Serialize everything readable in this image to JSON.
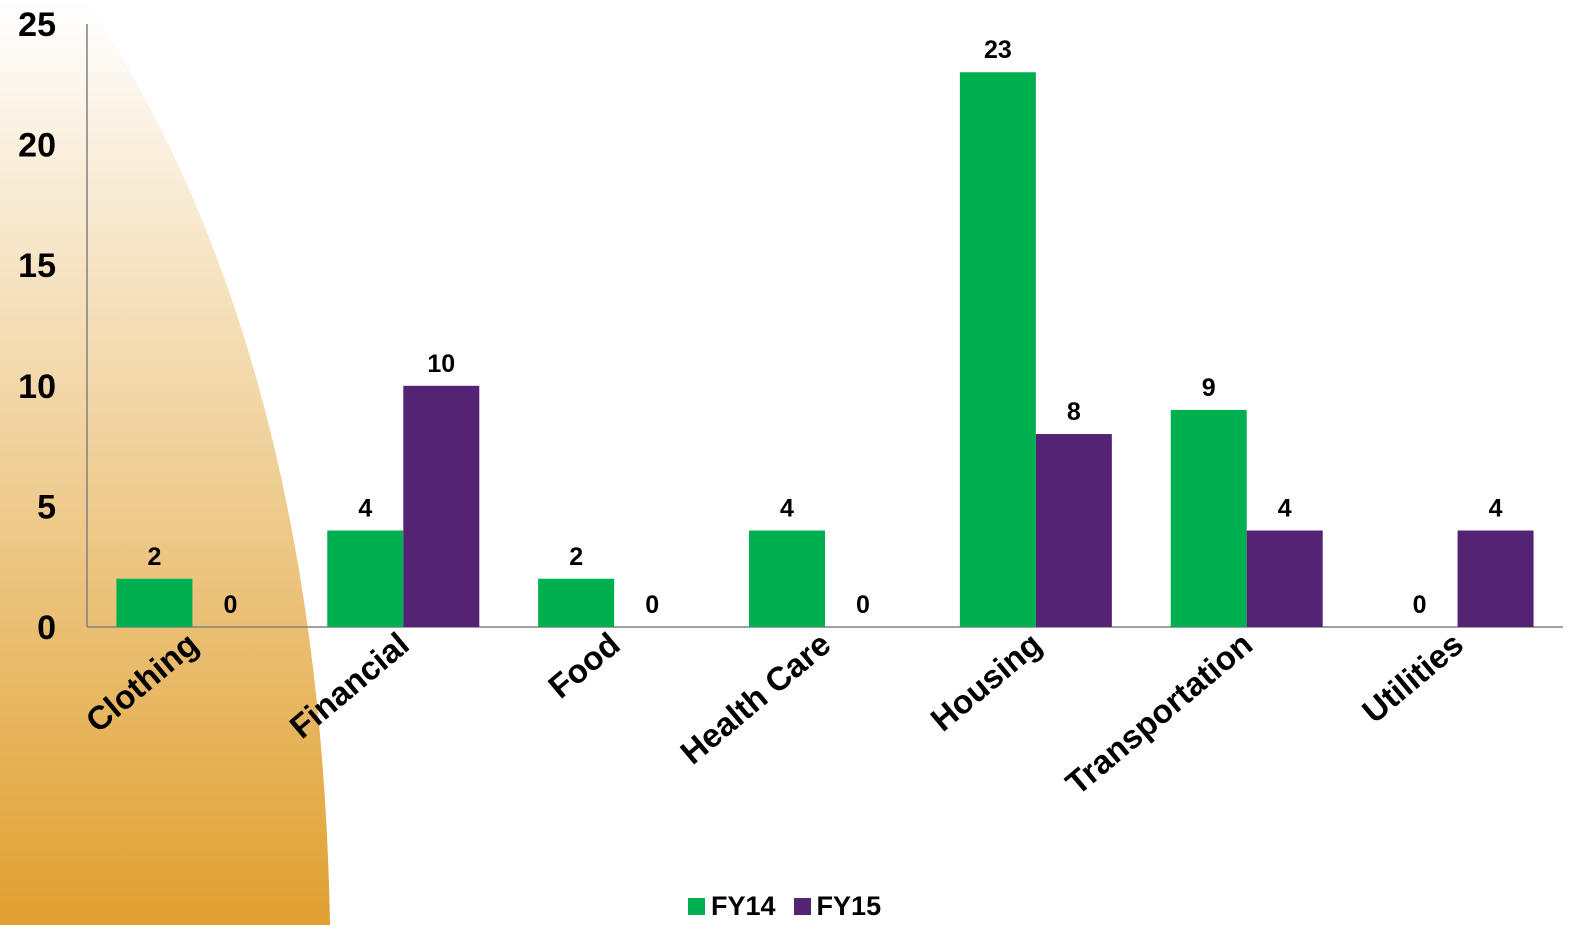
{
  "chart_data": {
    "type": "bar",
    "categories": [
      "Clothing",
      "Financial",
      "Food",
      "Health Care",
      "Housing",
      "Transportation",
      "Utilities"
    ],
    "series": [
      {
        "name": "FY14",
        "color": "#00b050",
        "values": [
          2,
          4,
          2,
          4,
          23,
          9,
          0
        ]
      },
      {
        "name": "FY15",
        "color": "#542374",
        "values": [
          0,
          10,
          0,
          0,
          8,
          4,
          4
        ]
      }
    ],
    "ylim": [
      0,
      25
    ],
    "yticks": [
      "0",
      "5",
      "10",
      "15",
      "20",
      "25"
    ],
    "grid": false,
    "legend_position": "bottom",
    "data_labels": true,
    "background_accent_colors": [
      "#e0a030",
      "#ffffff"
    ]
  }
}
